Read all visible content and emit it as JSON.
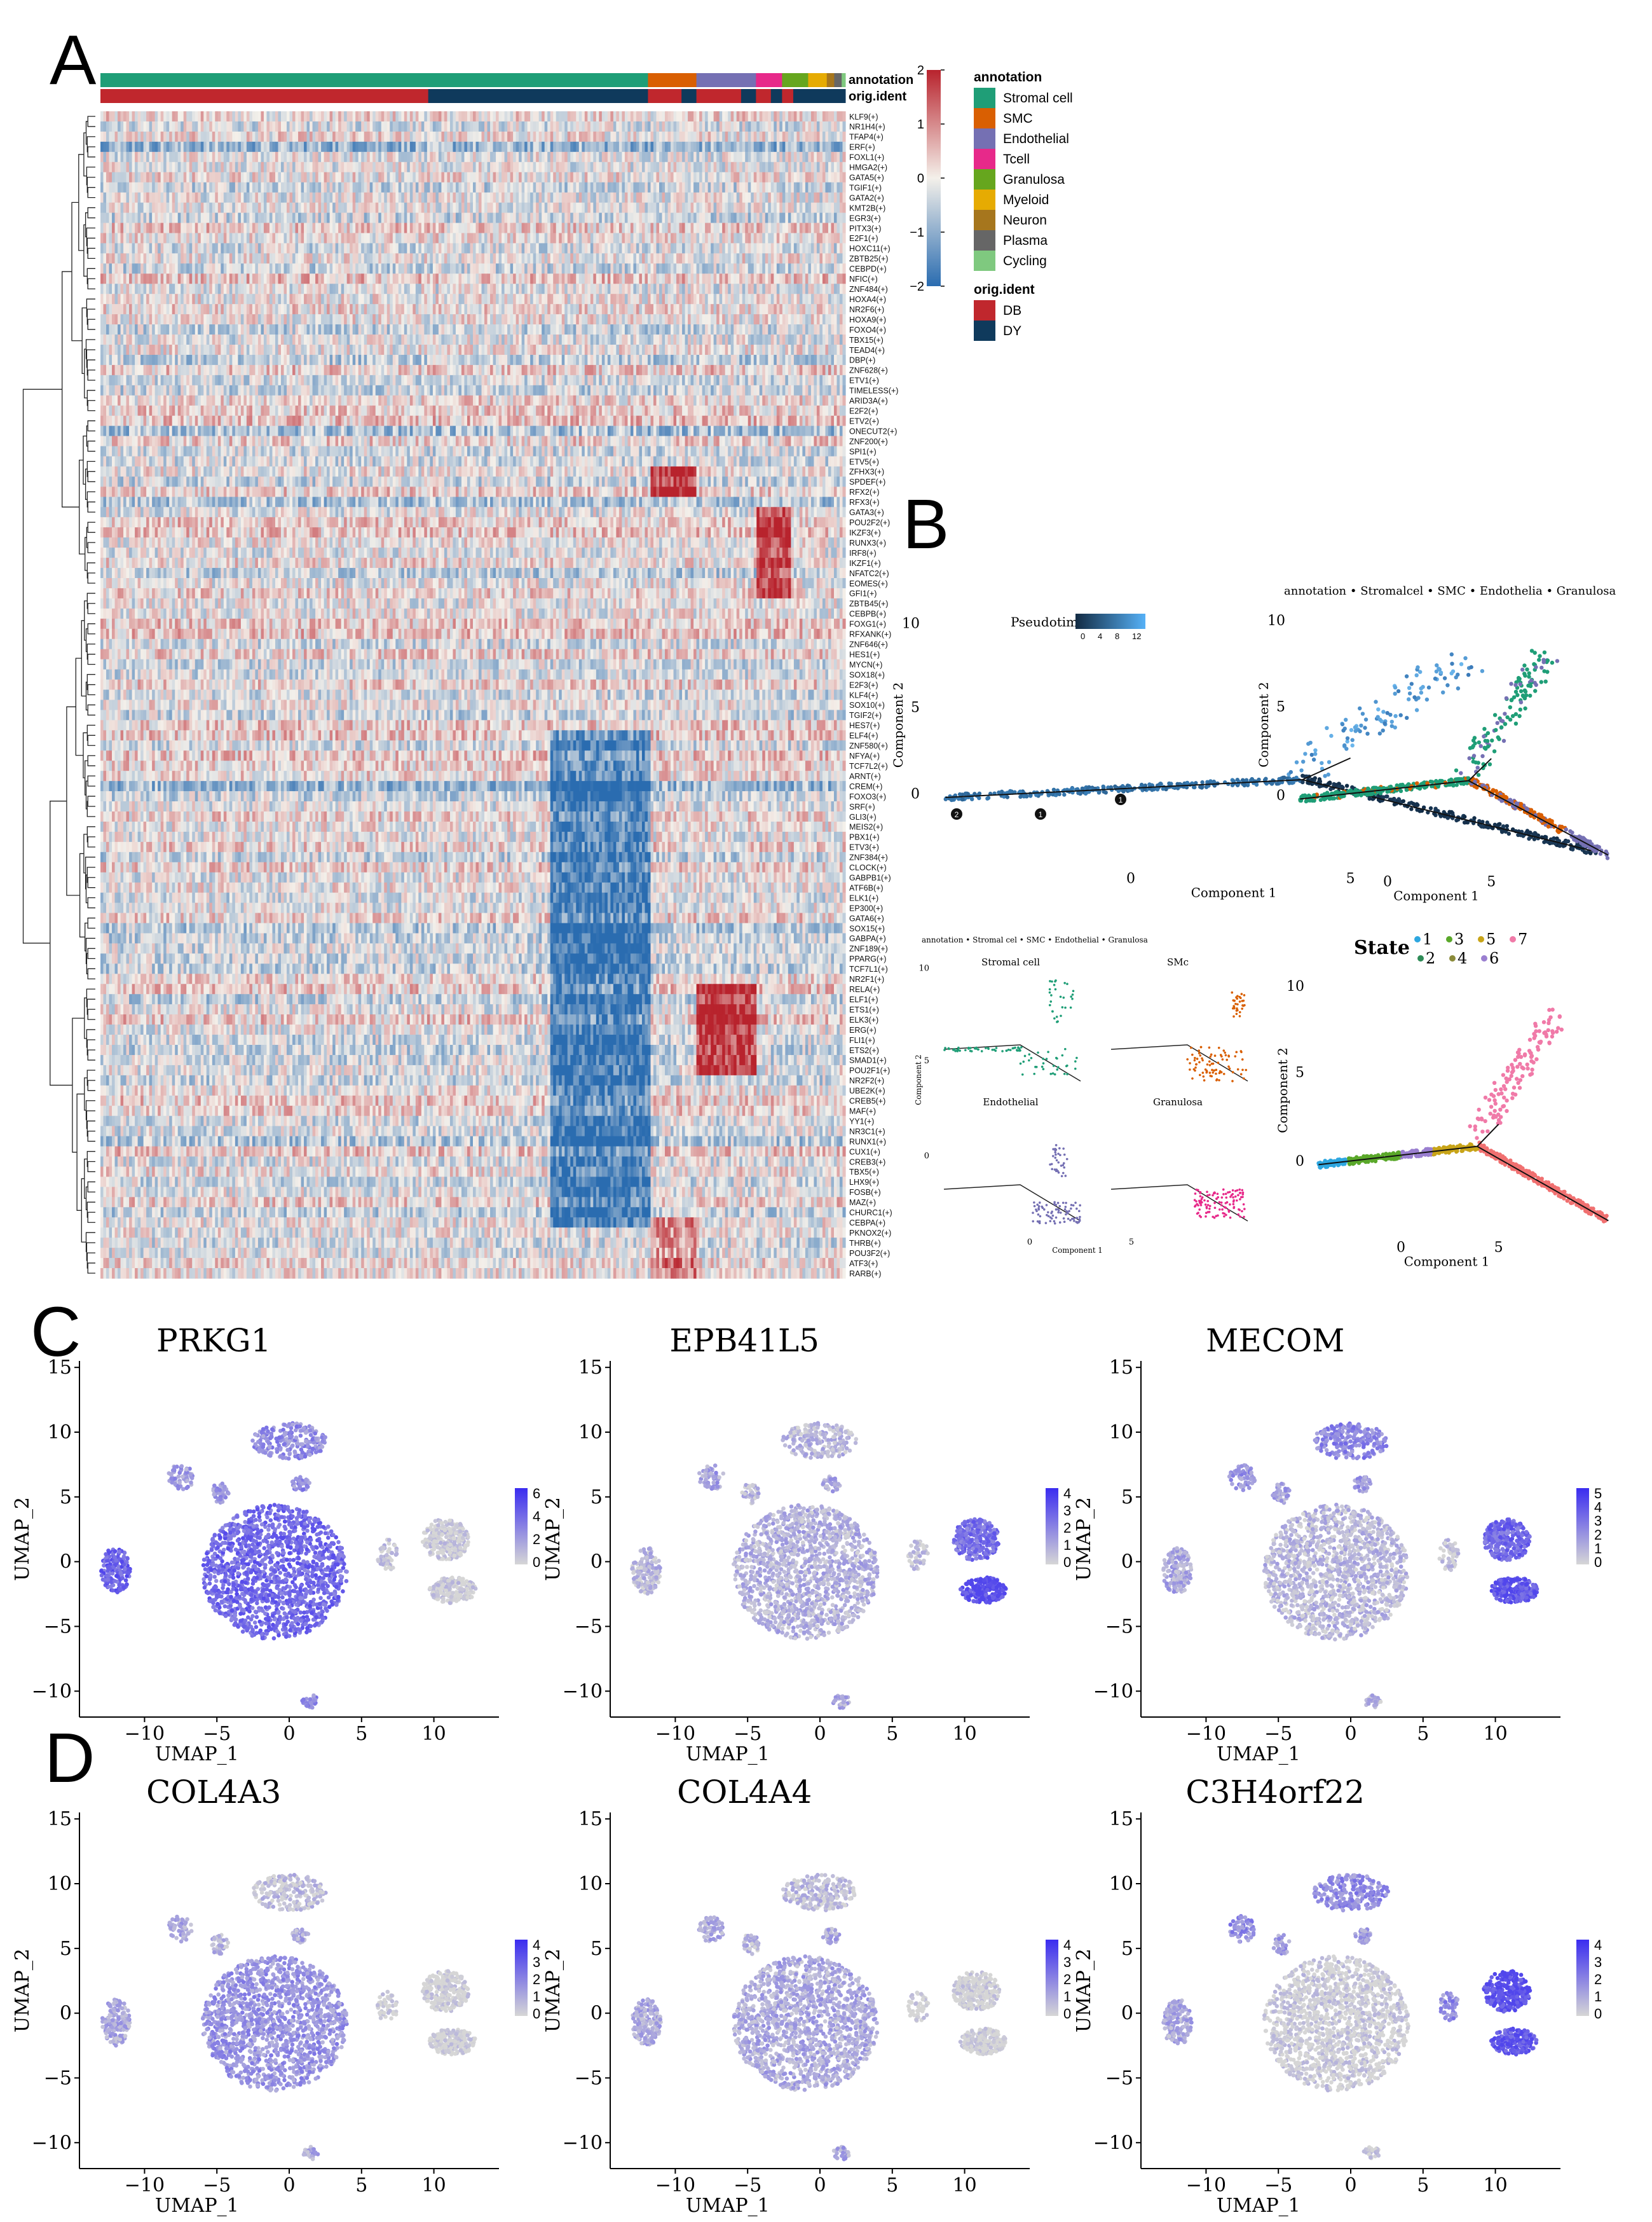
{
  "panel_labels": {
    "a": "A",
    "b": "B",
    "c": "C",
    "d": "D"
  },
  "heatmap": {
    "top_bar_labels": [
      "annotation",
      "orig.ident"
    ],
    "colorbar_ticks": [
      "2",
      "1",
      "0",
      "−1",
      "−2"
    ],
    "colors": {
      "low": "#2a6cb0",
      "mid": "#f4f0ea",
      "high": "#b8232d"
    },
    "genes": [
      "KLF9(+)",
      "NR1H4(+)",
      "TFAP4(+)",
      "ERF(+)",
      "FOXL1(+)",
      "HMGA2(+)",
      "GATA5(+)",
      "TGIF1(+)",
      "GATA2(+)",
      "KMT2B(+)",
      "EGR3(+)",
      "PITX3(+)",
      "E2F1(+)",
      "HOXC11(+)",
      "ZBTB25(+)",
      "CEBPD(+)",
      "NFIC(+)",
      "ZNF484(+)",
      "HOXA4(+)",
      "NR2F6(+)",
      "HOXA9(+)",
      "FOXO4(+)",
      "TBX15(+)",
      "TEAD4(+)",
      "DBP(+)",
      "ZNF628(+)",
      "ETV1(+)",
      "TIMELESS(+)",
      "ARID3A(+)",
      "E2F2(+)",
      "ETV2(+)",
      "ONECUT2(+)",
      "ZNF200(+)",
      "SPI1(+)",
      "ETV5(+)",
      "ZFHX3(+)",
      "SPDEF(+)",
      "RFX2(+)",
      "RFX3(+)",
      "GATA3(+)",
      "POU2F2(+)",
      "IKZF3(+)",
      "RUNX3(+)",
      "IRF8(+)",
      "IKZF1(+)",
      "NFATC2(+)",
      "EOMES(+)",
      "GFI1(+)",
      "ZBTB45(+)",
      "CEBPB(+)",
      "FOXG1(+)",
      "RFXANK(+)",
      "ZNF646(+)",
      "HES1(+)",
      "MYCN(+)",
      "SOX18(+)",
      "E2F3(+)",
      "KLF4(+)",
      "SOX10(+)",
      "TGIF2(+)",
      "HES7(+)",
      "ELF4(+)",
      "ZNF580(+)",
      "NFYA(+)",
      "TCF7L2(+)",
      "ARNT(+)",
      "CREM(+)",
      "FOXO3(+)",
      "SRF(+)",
      "GLI3(+)",
      "MEIS2(+)",
      "PBX1(+)",
      "ETV3(+)",
      "ZNF384(+)",
      "CLOCK(+)",
      "GABPB1(+)",
      "ATF6B(+)",
      "ELK1(+)",
      "EP300(+)",
      "GATA6(+)",
      "SOX15(+)",
      "GABPA(+)",
      "ZNF189(+)",
      "PPARG(+)",
      "TCF7L1(+)",
      "NR2F1(+)",
      "RELA(+)",
      "ELF1(+)",
      "ETS1(+)",
      "ELK3(+)",
      "ERG(+)",
      "FLI1(+)",
      "ETS2(+)",
      "SMAD1(+)",
      "POU2F1(+)",
      "NR2F2(+)",
      "UBE2K(+)",
      "CREB5(+)",
      "MAF(+)",
      "YY1(+)",
      "NR3C1(+)",
      "RUNX1(+)",
      "CUX1(+)",
      "CREB3(+)",
      "TBX5(+)",
      "LHX9(+)",
      "FOSB(+)",
      "MAZ(+)",
      "CHURC1(+)",
      "CEBPA(+)",
      "PKNOX2(+)",
      "THRB(+)",
      "POU3F2(+)",
      "ATF3(+)",
      "RARB(+)"
    ],
    "legend": {
      "annotation_title": "annotation",
      "annotation_items": [
        {
          "label": "Stromal cell",
          "color": "#1f9e77"
        },
        {
          "label": "SMC",
          "color": "#d95f02"
        },
        {
          "label": "Endothelial",
          "color": "#7570b3"
        },
        {
          "label": "Tcell",
          "color": "#e7298a"
        },
        {
          "label": "Granulosa",
          "color": "#66a61e"
        },
        {
          "label": "Myeloid",
          "color": "#e6ab02"
        },
        {
          "label": "Neuron",
          "color": "#a6761d"
        },
        {
          "label": "Plasma",
          "color": "#666666"
        },
        {
          "label": "Cycling",
          "color": "#7fc97f"
        }
      ],
      "orig_title": "orig.ident",
      "orig_items": [
        {
          "label": "DB",
          "color": "#c0272d"
        },
        {
          "label": "DY",
          "color": "#0f3a5c"
        }
      ]
    }
  },
  "trajectory": {
    "pseudotime_title": "Pseudotime",
    "pseudotime_ticks": [
      "0",
      "4",
      "8",
      "12"
    ],
    "annotation_legend": "annotation • Stromalcel • SMC • Endothelia • Granulosa",
    "small_legend": "annotation • Stromal cel • SMC • Endothelial • Granulosa",
    "facets": [
      "Stromal cell",
      "SMc",
      "Endothelial",
      "Granulosa"
    ],
    "state_title": "State",
    "state_items": [
      {
        "label": "1",
        "color": "#2ea7e0"
      },
      {
        "label": "2",
        "color": "#2e8b57"
      },
      {
        "label": "3",
        "color": "#5aa82a"
      },
      {
        "label": "4",
        "color": "#8b8b3a"
      },
      {
        "label": "5",
        "color": "#c8a418"
      },
      {
        "label": "6",
        "color": "#9a7fd0"
      },
      {
        "label": "7",
        "color": "#f07aa8"
      }
    ],
    "xlabel": "Component 1",
    "ylabel": "Component 2",
    "y_ticks": [
      "10",
      "5",
      "0"
    ],
    "x_ticks": [
      "0",
      "5"
    ],
    "small_y_ticks": [
      "10",
      "5",
      "0"
    ],
    "small_x_ticks": [
      "0",
      "5"
    ],
    "branch_nodes": [
      "2",
      "1",
      "1"
    ]
  },
  "umap": {
    "xlabel": "UMAP_1",
    "ylabel": "UMAP_2",
    "x_ticks": [
      "−10",
      "−5",
      "0",
      "5",
      "10"
    ],
    "y_ticks": [
      "15",
      "10",
      "5",
      "0",
      "−5",
      "−10"
    ],
    "low_color": "#d6d6d6",
    "high_color": "#3a2cf0",
    "panels": [
      {
        "title": "PRKG1",
        "scale": [
          "6",
          "4",
          "2",
          "0"
        ]
      },
      {
        "title": "EPB41L5",
        "scale": [
          "4",
          "3",
          "2",
          "1",
          "0"
        ]
      },
      {
        "title": "MECOM",
        "scale": [
          "5",
          "4",
          "3",
          "2",
          "1",
          "0"
        ]
      },
      {
        "title": "COL4A3",
        "scale": [
          "4",
          "3",
          "2",
          "1",
          "0"
        ]
      },
      {
        "title": "COL4A4",
        "scale": [
          "4",
          "3",
          "2",
          "1",
          "0"
        ]
      },
      {
        "title": "C3H4orf22",
        "scale": [
          "4",
          "3",
          "2",
          "1",
          "0"
        ]
      }
    ]
  }
}
